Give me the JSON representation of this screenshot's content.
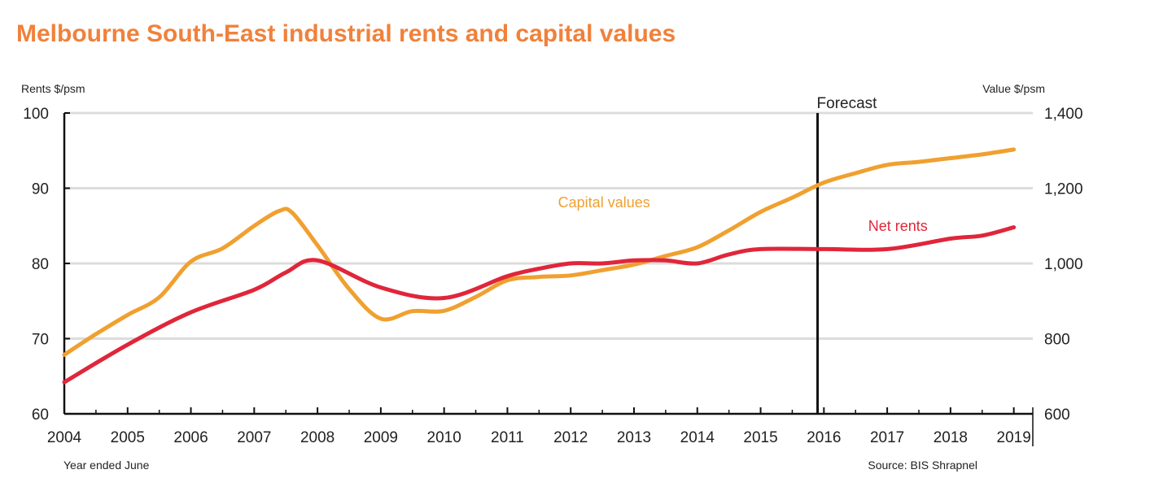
{
  "chart_data": {
    "type": "line",
    "title": "Melbourne South-East industrial rents and capital values",
    "ylabel_left": "Rents $/psm",
    "ylabel_right": "Value $/psm",
    "xlabel": "Year ended June",
    "source": "Source: BIS Shrapnel",
    "forecast_label": "Forecast",
    "forecast_start_x": 2015.9,
    "x_ticks": [
      "2004",
      "2005",
      "2006",
      "2007",
      "2008",
      "2009",
      "2010",
      "2011",
      "2012",
      "2013",
      "2014",
      "2015",
      "2016",
      "2017",
      "2018",
      "2019"
    ],
    "xlim": [
      2004,
      2019.3
    ],
    "ylim_left": [
      60,
      100
    ],
    "ylim_right": [
      600,
      1400
    ],
    "yticks_left": [
      "60",
      "70",
      "80",
      "90",
      "100"
    ],
    "yticks_right": [
      "600",
      "800",
      "1,000",
      "1,200",
      "1,400"
    ],
    "grid": true,
    "series": [
      {
        "name": "Net rents",
        "axis": "left",
        "color": "#e0263a",
        "label_at": [
          2016.7,
          84.3
        ],
        "points": [
          [
            2004.0,
            64.2
          ],
          [
            2005.0,
            69.2
          ],
          [
            2006.0,
            73.5
          ],
          [
            2007.0,
            76.5
          ],
          [
            2007.5,
            78.8
          ],
          [
            2008.0,
            80.4
          ],
          [
            2009.0,
            76.8
          ],
          [
            2010.0,
            75.4
          ],
          [
            2011.0,
            78.3
          ],
          [
            2011.5,
            79.3
          ],
          [
            2012.0,
            80.0
          ],
          [
            2012.5,
            80.0
          ],
          [
            2013.0,
            80.4
          ],
          [
            2013.5,
            80.4
          ],
          [
            2014.0,
            80.0
          ],
          [
            2014.5,
            81.2
          ],
          [
            2015.0,
            81.9
          ],
          [
            2016.0,
            81.9
          ],
          [
            2017.0,
            81.9
          ],
          [
            2018.0,
            83.3
          ],
          [
            2018.5,
            83.7
          ],
          [
            2019.0,
            84.8
          ]
        ]
      },
      {
        "name": "Capital values",
        "axis": "right",
        "color": "#f0a030",
        "label_at": [
          2011.8,
          1149
        ],
        "points": [
          [
            2004.0,
            757
          ],
          [
            2004.5,
            812
          ],
          [
            2005.0,
            863
          ],
          [
            2005.5,
            910
          ],
          [
            2006.0,
            1005
          ],
          [
            2006.5,
            1040
          ],
          [
            2007.0,
            1100
          ],
          [
            2007.4,
            1140
          ],
          [
            2007.6,
            1135
          ],
          [
            2008.0,
            1048
          ],
          [
            2008.5,
            932
          ],
          [
            2009.0,
            853
          ],
          [
            2009.5,
            873
          ],
          [
            2010.0,
            874
          ],
          [
            2010.5,
            911
          ],
          [
            2011.0,
            955
          ],
          [
            2011.5,
            964
          ],
          [
            2012.0,
            968
          ],
          [
            2012.5,
            982
          ],
          [
            2013.0,
            997
          ],
          [
            2013.5,
            1020
          ],
          [
            2014.0,
            1043
          ],
          [
            2014.5,
            1088
          ],
          [
            2015.0,
            1137
          ],
          [
            2015.5,
            1175
          ],
          [
            2016.0,
            1215
          ],
          [
            2016.5,
            1240
          ],
          [
            2017.0,
            1262
          ],
          [
            2017.5,
            1270
          ],
          [
            2018.0,
            1280
          ],
          [
            2018.5,
            1290
          ],
          [
            2019.0,
            1303
          ]
        ]
      }
    ]
  }
}
